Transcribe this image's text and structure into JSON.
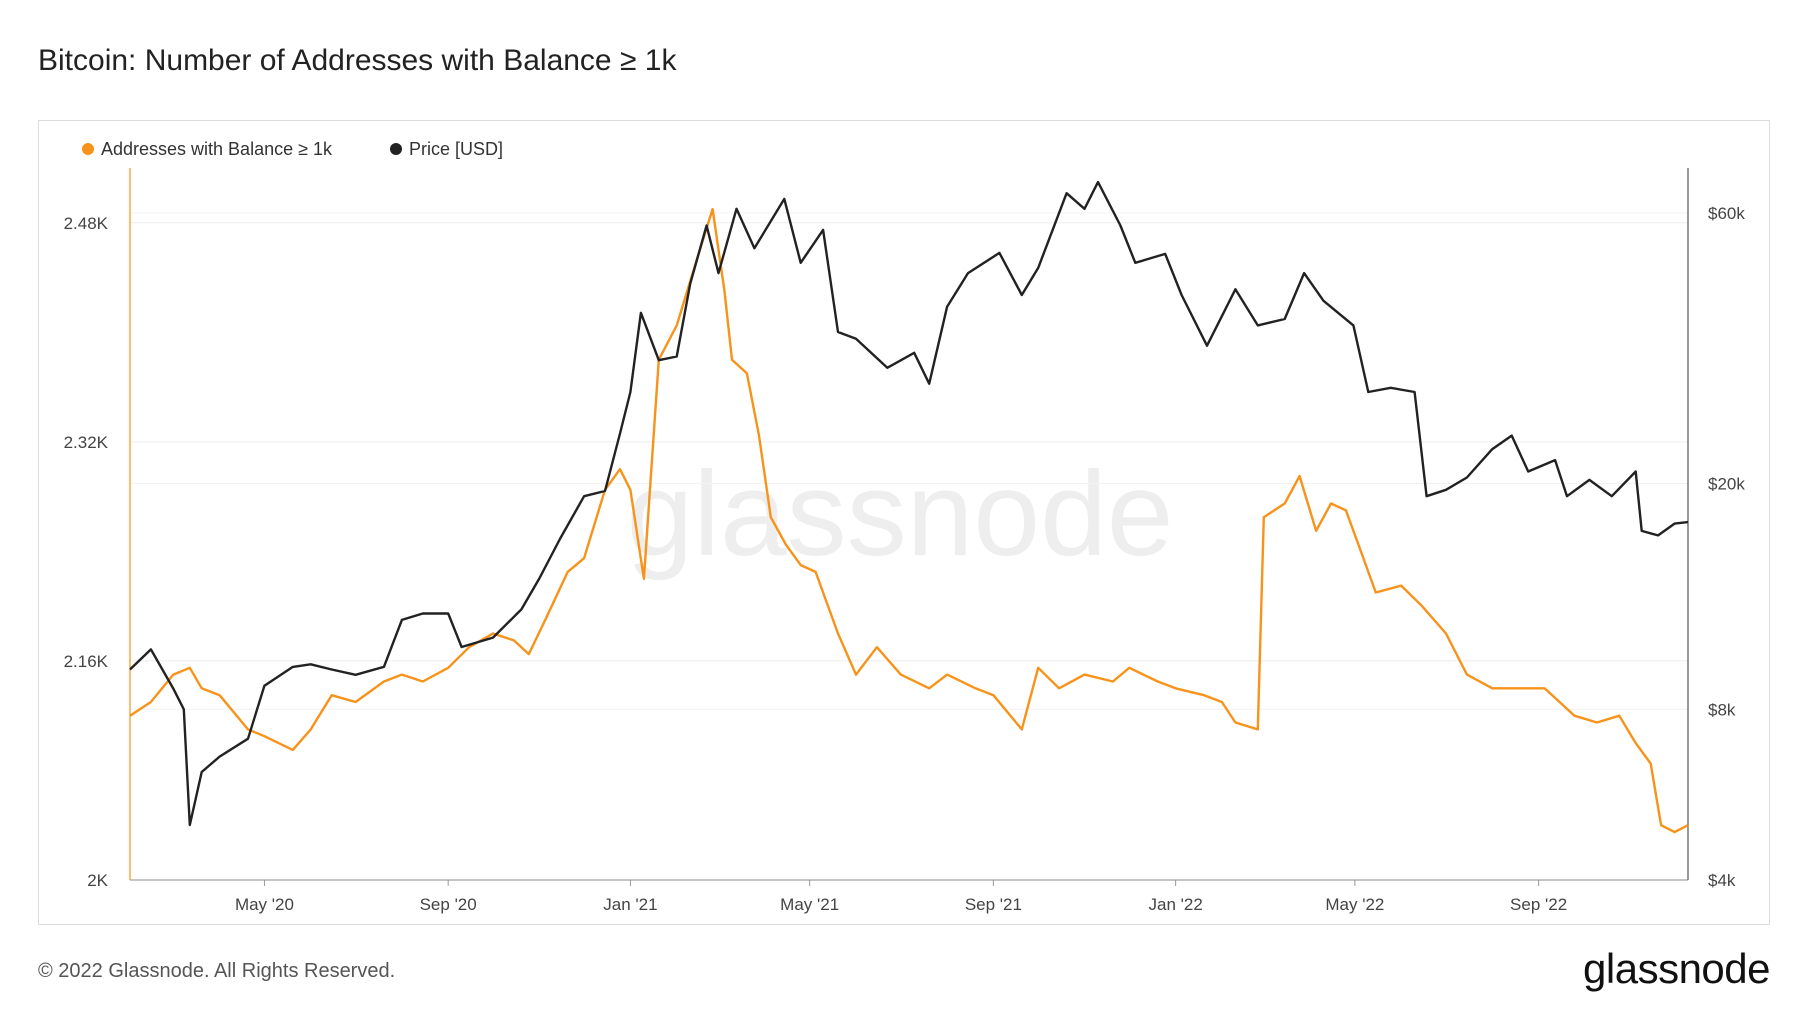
{
  "page": {
    "title": "Bitcoin: Number of Addresses with Balance ≥ 1k",
    "copyright": "© 2022 Glassnode. All Rights Reserved.",
    "logo_text": "glassnode",
    "watermark": "glassnode"
  },
  "chart_data": {
    "type": "line",
    "title": "Bitcoin: Number of Addresses with Balance ≥ 1k",
    "x_range": [
      "2020-02-01",
      "2022-12-10"
    ],
    "x_ticks": [
      {
        "label": "May '20",
        "date": "2020-05-01"
      },
      {
        "label": "Sep '20",
        "date": "2020-09-01"
      },
      {
        "label": "Jan '21",
        "date": "2021-01-01"
      },
      {
        "label": "May '21",
        "date": "2021-05-01"
      },
      {
        "label": "Sep '21",
        "date": "2021-09-01"
      },
      {
        "label": "Jan '22",
        "date": "2022-01-01"
      },
      {
        "label": "May '22",
        "date": "2022-05-01"
      },
      {
        "label": "Sep '22",
        "date": "2022-09-01"
      }
    ],
    "y_left": {
      "scale": "linear",
      "ylim": [
        2000,
        2520
      ],
      "ticks": [
        {
          "label": "2K",
          "value": 2000
        },
        {
          "label": "2.16K",
          "value": 2160
        },
        {
          "label": "2.32K",
          "value": 2320
        },
        {
          "label": "2.48K",
          "value": 2480
        }
      ]
    },
    "y_right": {
      "scale": "log",
      "ylim": [
        4000,
        72000
      ],
      "ticks": [
        {
          "label": "$4k",
          "value": 4000
        },
        {
          "label": "$8k",
          "value": 8000
        },
        {
          "label": "$20k",
          "value": 20000
        },
        {
          "label": "$60k",
          "value": 60000
        }
      ]
    },
    "series": [
      {
        "name": "Addresses with Balance ≥ 1k",
        "axis": "left",
        "color": "#f7931a",
        "points": [
          [
            "2020-02-01",
            2120
          ],
          [
            "2020-02-15",
            2130
          ],
          [
            "2020-03-01",
            2150
          ],
          [
            "2020-03-12",
            2155
          ],
          [
            "2020-03-20",
            2140
          ],
          [
            "2020-04-01",
            2135
          ],
          [
            "2020-04-20",
            2110
          ],
          [
            "2020-05-01",
            2105
          ],
          [
            "2020-05-20",
            2095
          ],
          [
            "2020-06-01",
            2110
          ],
          [
            "2020-06-15",
            2135
          ],
          [
            "2020-07-01",
            2130
          ],
          [
            "2020-07-20",
            2145
          ],
          [
            "2020-08-01",
            2150
          ],
          [
            "2020-08-15",
            2145
          ],
          [
            "2020-09-01",
            2155
          ],
          [
            "2020-09-15",
            2170
          ],
          [
            "2020-10-01",
            2180
          ],
          [
            "2020-10-15",
            2175
          ],
          [
            "2020-10-25",
            2165
          ],
          [
            "2020-11-05",
            2190
          ],
          [
            "2020-11-20",
            2225
          ],
          [
            "2020-12-01",
            2235
          ],
          [
            "2020-12-15",
            2285
          ],
          [
            "2020-12-25",
            2300
          ],
          [
            "2021-01-01",
            2285
          ],
          [
            "2021-01-10",
            2220
          ],
          [
            "2021-01-20",
            2380
          ],
          [
            "2021-02-01",
            2405
          ],
          [
            "2021-02-15",
            2455
          ],
          [
            "2021-02-25",
            2490
          ],
          [
            "2021-03-05",
            2430
          ],
          [
            "2021-03-10",
            2380
          ],
          [
            "2021-03-20",
            2370
          ],
          [
            "2021-03-28",
            2325
          ],
          [
            "2021-04-05",
            2265
          ],
          [
            "2021-04-15",
            2245
          ],
          [
            "2021-04-25",
            2230
          ],
          [
            "2021-05-05",
            2225
          ],
          [
            "2021-05-20",
            2180
          ],
          [
            "2021-06-01",
            2150
          ],
          [
            "2021-06-15",
            2170
          ],
          [
            "2021-07-01",
            2150
          ],
          [
            "2021-07-20",
            2140
          ],
          [
            "2021-08-01",
            2150
          ],
          [
            "2021-08-20",
            2140
          ],
          [
            "2021-09-01",
            2135
          ],
          [
            "2021-09-20",
            2110
          ],
          [
            "2021-10-01",
            2155
          ],
          [
            "2021-10-15",
            2140
          ],
          [
            "2021-11-01",
            2150
          ],
          [
            "2021-11-20",
            2145
          ],
          [
            "2021-12-01",
            2155
          ],
          [
            "2021-12-20",
            2145
          ],
          [
            "2022-01-01",
            2140
          ],
          [
            "2022-01-20",
            2135
          ],
          [
            "2022-02-01",
            2130
          ],
          [
            "2022-02-10",
            2115
          ],
          [
            "2022-02-25",
            2110
          ],
          [
            "2022-03-01",
            2265
          ],
          [
            "2022-03-15",
            2275
          ],
          [
            "2022-03-25",
            2295
          ],
          [
            "2022-04-05",
            2255
          ],
          [
            "2022-04-15",
            2275
          ],
          [
            "2022-04-25",
            2270
          ],
          [
            "2022-05-05",
            2240
          ],
          [
            "2022-05-15",
            2210
          ],
          [
            "2022-06-01",
            2215
          ],
          [
            "2022-06-15",
            2200
          ],
          [
            "2022-07-01",
            2180
          ],
          [
            "2022-07-15",
            2150
          ],
          [
            "2022-08-01",
            2140
          ],
          [
            "2022-08-20",
            2140
          ],
          [
            "2022-09-05",
            2140
          ],
          [
            "2022-09-25",
            2120
          ],
          [
            "2022-10-10",
            2115
          ],
          [
            "2022-10-25",
            2120
          ],
          [
            "2022-11-05",
            2100
          ],
          [
            "2022-11-15",
            2085
          ],
          [
            "2022-11-22",
            2040
          ],
          [
            "2022-12-01",
            2035
          ],
          [
            "2022-12-10",
            2040
          ]
        ]
      },
      {
        "name": "Price [USD]",
        "axis": "right",
        "color": "#222222",
        "points": [
          [
            "2020-02-01",
            9400
          ],
          [
            "2020-02-15",
            10200
          ],
          [
            "2020-03-01",
            8700
          ],
          [
            "2020-03-08",
            8000
          ],
          [
            "2020-03-12",
            5000
          ],
          [
            "2020-03-20",
            6200
          ],
          [
            "2020-04-01",
            6600
          ],
          [
            "2020-04-20",
            7100
          ],
          [
            "2020-05-01",
            8800
          ],
          [
            "2020-05-20",
            9500
          ],
          [
            "2020-06-01",
            9600
          ],
          [
            "2020-06-15",
            9400
          ],
          [
            "2020-07-01",
            9200
          ],
          [
            "2020-07-20",
            9500
          ],
          [
            "2020-08-01",
            11500
          ],
          [
            "2020-08-15",
            11800
          ],
          [
            "2020-09-01",
            11800
          ],
          [
            "2020-09-10",
            10300
          ],
          [
            "2020-10-01",
            10700
          ],
          [
            "2020-10-20",
            12000
          ],
          [
            "2020-11-01",
            13600
          ],
          [
            "2020-11-15",
            16000
          ],
          [
            "2020-12-01",
            19000
          ],
          [
            "2020-12-15",
            19400
          ],
          [
            "2020-12-25",
            24500
          ],
          [
            "2021-01-01",
            29000
          ],
          [
            "2021-01-08",
            40000
          ],
          [
            "2021-01-20",
            33000
          ],
          [
            "2021-02-01",
            33500
          ],
          [
            "2021-02-10",
            45000
          ],
          [
            "2021-02-21",
            57000
          ],
          [
            "2021-03-01",
            47000
          ],
          [
            "2021-03-13",
            61000
          ],
          [
            "2021-03-25",
            52000
          ],
          [
            "2021-04-14",
            63500
          ],
          [
            "2021-04-25",
            49000
          ],
          [
            "2021-05-10",
            56000
          ],
          [
            "2021-05-20",
            37000
          ],
          [
            "2021-06-01",
            36000
          ],
          [
            "2021-06-22",
            32000
          ],
          [
            "2021-07-10",
            34000
          ],
          [
            "2021-07-20",
            30000
          ],
          [
            "2021-08-01",
            41000
          ],
          [
            "2021-08-15",
            47000
          ],
          [
            "2021-09-05",
            51000
          ],
          [
            "2021-09-20",
            43000
          ],
          [
            "2021-10-01",
            48000
          ],
          [
            "2021-10-20",
            65000
          ],
          [
            "2021-11-01",
            61000
          ],
          [
            "2021-11-10",
            68000
          ],
          [
            "2021-11-25",
            57000
          ],
          [
            "2021-12-05",
            49000
          ],
          [
            "2021-12-25",
            50800
          ],
          [
            "2022-01-05",
            43000
          ],
          [
            "2022-01-22",
            35000
          ],
          [
            "2022-02-10",
            44000
          ],
          [
            "2022-02-25",
            38000
          ],
          [
            "2022-03-15",
            39000
          ],
          [
            "2022-03-28",
            47000
          ],
          [
            "2022-04-10",
            42000
          ],
          [
            "2022-04-30",
            38000
          ],
          [
            "2022-05-10",
            29000
          ],
          [
            "2022-05-25",
            29500
          ],
          [
            "2022-06-10",
            29000
          ],
          [
            "2022-06-18",
            19000
          ],
          [
            "2022-07-01",
            19500
          ],
          [
            "2022-07-15",
            20500
          ],
          [
            "2022-08-01",
            23000
          ],
          [
            "2022-08-14",
            24300
          ],
          [
            "2022-08-25",
            21000
          ],
          [
            "2022-09-12",
            22000
          ],
          [
            "2022-09-20",
            19000
          ],
          [
            "2022-10-05",
            20300
          ],
          [
            "2022-10-20",
            19000
          ],
          [
            "2022-11-05",
            21000
          ],
          [
            "2022-11-09",
            16500
          ],
          [
            "2022-11-20",
            16200
          ],
          [
            "2022-12-01",
            17000
          ],
          [
            "2022-12-10",
            17100
          ]
        ]
      }
    ]
  }
}
